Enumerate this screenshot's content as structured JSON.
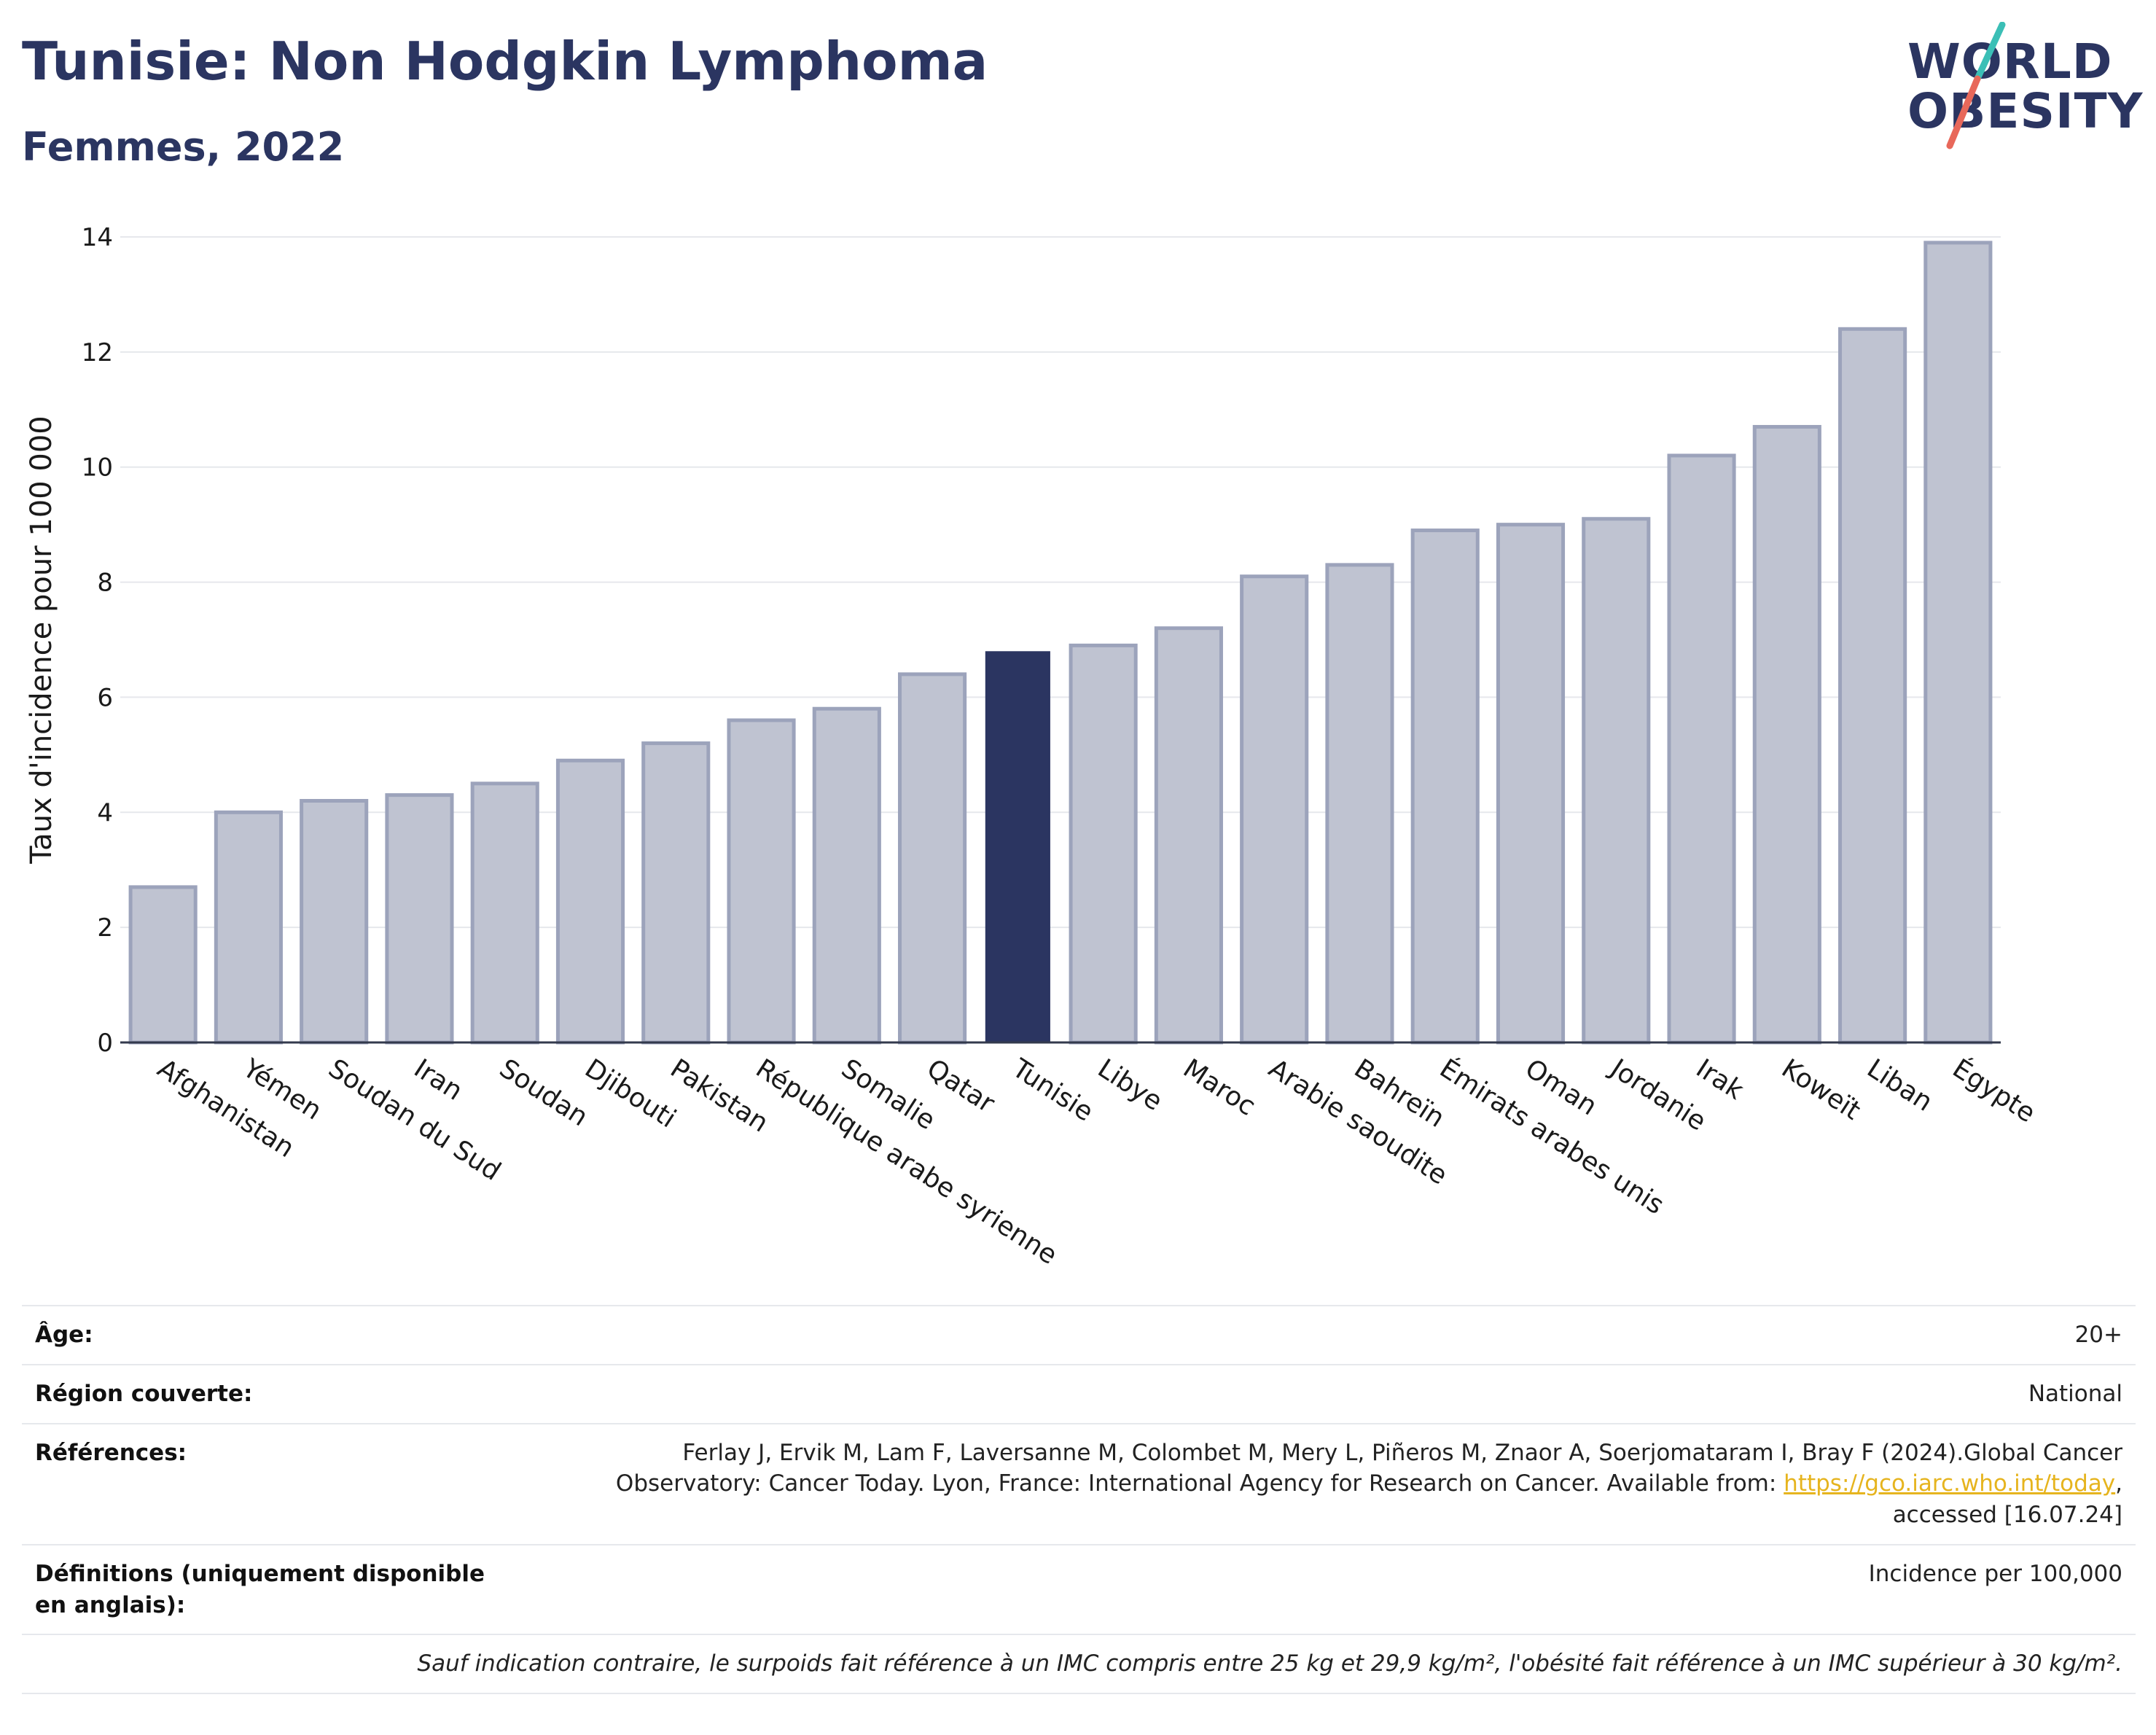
{
  "header": {
    "title": "Tunisie: Non Hodgkin Lymphoma",
    "subtitle": "Femmes, 2022"
  },
  "logo": {
    "line1": "WORLD",
    "line2": "OBESITY"
  },
  "colors": {
    "bar": "#bfc3d1",
    "bar_border": "#9ca3bb",
    "highlight": "#2b3561",
    "text": "#2b3561",
    "link": "#e6b41e",
    "logo_slash_top": "#3bbfb6",
    "logo_slash_bottom": "#e8685a"
  },
  "chart_data": {
    "type": "bar",
    "ylabel": "Taux d'incidence pour 100 000",
    "ylim": [
      0,
      14
    ],
    "yticks": [
      0,
      2,
      4,
      6,
      8,
      10,
      12,
      14
    ],
    "grid": true,
    "highlight": "Tunisie",
    "categories": [
      "Afghanistan",
      "Yémen",
      "Soudan du Sud",
      "Iran",
      "Soudan",
      "Djibouti",
      "Pakistan",
      "République arabe syrienne",
      "Somalie",
      "Qatar",
      "Tunisie",
      "Libye",
      "Maroc",
      "Arabie saoudite",
      "Bahreïn",
      "Émirats arabes unis",
      "Oman",
      "Jordanie",
      "Irak",
      "Koweït",
      "Liban",
      "Égypte"
    ],
    "values": [
      2.7,
      4.0,
      4.2,
      4.3,
      4.5,
      4.9,
      5.2,
      5.6,
      5.8,
      6.4,
      6.8,
      6.9,
      7.2,
      8.1,
      8.3,
      8.9,
      9.0,
      9.1,
      10.2,
      10.7,
      12.4,
      13.9
    ]
  },
  "info": {
    "age_label": "Âge:",
    "age_value": "20+",
    "region_label": "Région couverte:",
    "region_value": "National",
    "references_label": "Références:",
    "references_line1": "Ferlay J, Ervik M, Lam F, Laversanne M, Colombet M, Mery L, Piñeros M, Znaor A, Soerjomataram I, Bray F (2024).Global Cancer",
    "references_line2": "Observatory: Cancer Today. Lyon, France: International Agency for Research on Cancer. Available from:",
    "references_link": "https://gco.iarc.who.int/today",
    "references_line3": "accessed [16.07.24]",
    "definitions_label": "Définitions (uniquement disponible en anglais):",
    "definitions_value": "Incidence per 100,000",
    "note": "Sauf indication contraire, le surpoids fait référence à un IMC compris entre 25 kg et 29,9 kg/m², l'obésité fait référence à un IMC supérieur à 30 kg/m²."
  }
}
